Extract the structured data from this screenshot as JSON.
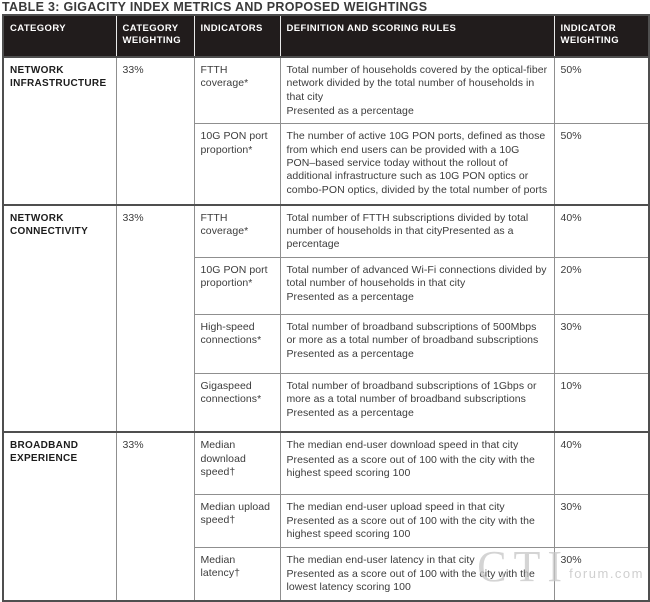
{
  "title": "TABLE 3: GIGACITY INDEX METRICS AND PROPOSED WEIGHTINGS",
  "header": {
    "columns": [
      "CATEGORY",
      "CATEGORY WEIGHTING",
      "INDICATORS",
      "DEFINITION AND SCORING RULES",
      "INDICATOR WEIGHTING"
    ]
  },
  "groups": [
    {
      "category": "NETWORK INFRASTRUCTURE",
      "category_weighting": "33%",
      "indicators": [
        {
          "name": "FTTH coverage*",
          "definition": [
            "Total number of households covered by the optical-fiber network divided by the total number of households in that city",
            "Presented as a percentage"
          ],
          "indicator_weighting": "50%"
        },
        {
          "name": "10G PON port proportion*",
          "definition": [
            "The number of active 10G PON ports, defined as those from which end users can be provided with a 10G PON–based service today without the rollout of additional infrastructure such as 10G PON optics or combo-PON optics, divided by the total number of ports"
          ],
          "indicator_weighting": "50%"
        }
      ]
    },
    {
      "category": "NETWORK CONNECTIVITY",
      "category_weighting": "33%",
      "indicators": [
        {
          "name": "FTTH coverage*",
          "definition": [
            "Total number of FTTH subscriptions divided by total number of households in that cityPresented as a percentage"
          ],
          "indicator_weighting": "40%"
        },
        {
          "name": "10G PON port proportion*",
          "definition": [
            "Total number of advanced Wi-Fi connections divided by total number of households in that city",
            "Presented as a percentage"
          ],
          "indicator_weighting": "20%"
        },
        {
          "name": "High-speed connections*",
          "definition": [
            "Total number of broadband subscriptions of 500Mbps or more as a total number of broadband subscriptions",
            "Presented as a percentage"
          ],
          "indicator_weighting": "30%"
        },
        {
          "name": "Gigaspeed connections*",
          "definition": [
            "Total number of broadband subscriptions of 1Gbps or more as a total number of broadband subscriptions",
            "Presented as a percentage"
          ],
          "indicator_weighting": "10%"
        }
      ]
    },
    {
      "category": "BROADBAND EXPERIENCE",
      "category_weighting": "33%",
      "indicators": [
        {
          "name": "Median download speed†",
          "definition": [
            "The median end-user download speed in that city",
            "Presented as a score out of 100 with the city with the highest speed scoring 100"
          ],
          "indicator_weighting": "40%"
        },
        {
          "name": "Median upload speed†",
          "definition": [
            "The median end-user upload speed in that city",
            "Presented as a score out of 100 with the city with the highest speed scoring 100"
          ],
          "indicator_weighting": "30%"
        },
        {
          "name": "Median latency†",
          "definition": [
            "The median end-user latency in that city",
            "Presented as a score out of 100 with the city with the lowest latency scoring 100"
          ],
          "indicator_weighting": "30%"
        }
      ]
    }
  ],
  "watermark": {
    "big": "CTI",
    "small": "forum.com"
  },
  "colors": {
    "header_bg": "#211c1c",
    "header_text": "#ffffff",
    "cell_border": "#8f8f8f",
    "group_border": "#4f4f4f",
    "body_text": "#3c3c3c",
    "watermark_text": "#c3c3c3"
  }
}
